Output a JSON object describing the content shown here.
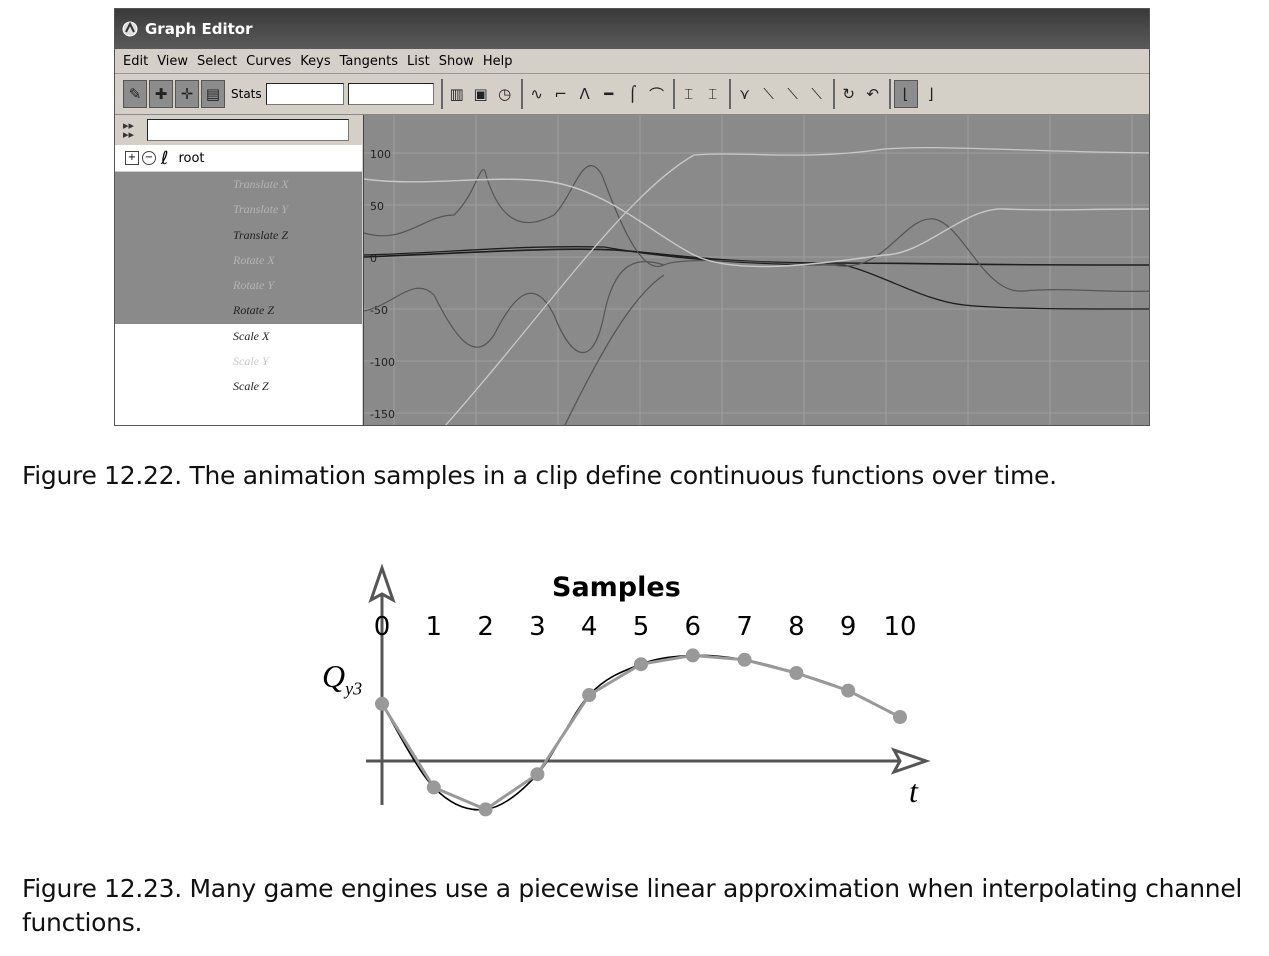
{
  "graph_editor": {
    "title": "Graph Editor",
    "menu": [
      "Edit",
      "View",
      "Select",
      "Curves",
      "Keys",
      "Tangents",
      "List",
      "Show",
      "Help"
    ],
    "toolbar": {
      "stats_label": "Stats",
      "icons_left": [
        "move-key-icon",
        "insert-key-icon",
        "add-key-icon",
        "lattice-deform-icon"
      ],
      "icons_right": [
        "buffer-curve-icon",
        "frame-all-icon",
        "frame-selection-icon",
        "spline-tangent-icon",
        "linear-tangent-icon",
        "clamped-tangent-icon",
        "flat-tangent-icon",
        "step-tangent-icon",
        "plateau-tangent-icon",
        "break-tangents-icon",
        "unify-tangents-icon",
        "free-weight-icon",
        "lock-weight-icon",
        "unlock-weight-icon",
        "weighted-tangents-icon",
        "pre-infinity-icon",
        "post-infinity-icon",
        "cycle-icon",
        "snap-icon"
      ]
    },
    "outliner": {
      "root": "root",
      "channels": [
        {
          "label": "Translate X",
          "selected": true,
          "faded": true
        },
        {
          "label": "Translate Y",
          "selected": true,
          "faded": true
        },
        {
          "label": "Translate Z",
          "selected": true,
          "faded": false
        },
        {
          "label": "Rotate X",
          "selected": true,
          "faded": true
        },
        {
          "label": "Rotate Y",
          "selected": true,
          "faded": true
        },
        {
          "label": "Rotate Z",
          "selected": true,
          "faded": false
        },
        {
          "label": "Scale X",
          "selected": false,
          "faded": false
        },
        {
          "label": "Scale Y",
          "selected": false,
          "faded": true
        },
        {
          "label": "Scale Z",
          "selected": false,
          "faded": false
        }
      ]
    },
    "graph": {
      "y_ticks": [
        "100",
        "50",
        "0",
        "-50",
        "-100",
        "-150"
      ]
    },
    "colors": {
      "graph_bg": "#8a8a8a",
      "grid": "#9e9e9e",
      "dark_curve": "#1e1e1e",
      "light_curve": "#c8c8c8",
      "mid_curve": "#555555"
    }
  },
  "caption_1": "Figure 12.22. The animation samples in a clip define continuous functions over time.",
  "caption_2": "Figure 12.23. Many game engines use a piecewise linear approximation when interpolating channel functions.",
  "chart_data": {
    "type": "line",
    "title": "Samples",
    "x_ticks": [
      "0",
      "1",
      "2",
      "3",
      "4",
      "5",
      "6",
      "7",
      "8",
      "9",
      "10"
    ],
    "ylabel_main": "Q",
    "ylabel_sub": "y3",
    "xlabel": "t",
    "samples": [
      {
        "x": 0,
        "y": 1.3
      },
      {
        "x": 1,
        "y": -0.6
      },
      {
        "x": 2,
        "y": -1.1
      },
      {
        "x": 3,
        "y": -0.3
      },
      {
        "x": 4,
        "y": 1.5
      },
      {
        "x": 5,
        "y": 2.2
      },
      {
        "x": 6,
        "y": 2.4
      },
      {
        "x": 7,
        "y": 2.3
      },
      {
        "x": 8,
        "y": 2.0
      },
      {
        "x": 9,
        "y": 1.6
      },
      {
        "x": 10,
        "y": 1.0
      }
    ],
    "series": [
      {
        "style": "smooth",
        "color": "#000000"
      },
      {
        "style": "piecewise-linear",
        "color": "#999999"
      }
    ],
    "sample_color": "#999999"
  }
}
